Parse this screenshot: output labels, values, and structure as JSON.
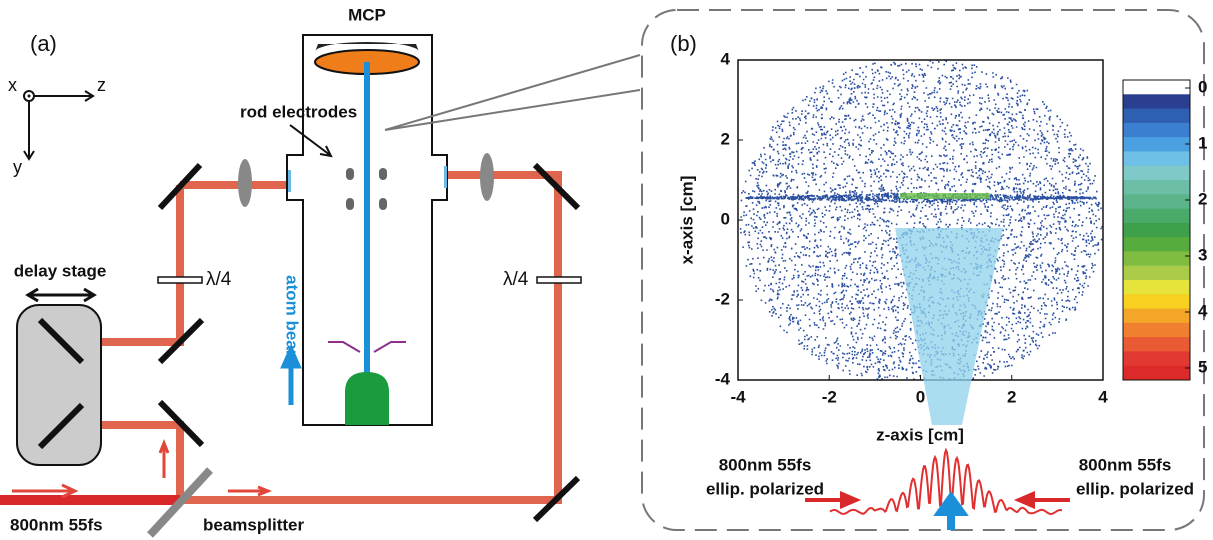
{
  "panel_a": {
    "label": "(a)",
    "axes": {
      "x": "x",
      "z": "z",
      "y": "y"
    },
    "mcp": "MCP",
    "rod_electrodes": "rod electrodes",
    "delay_stage": "delay stage",
    "waveplate_left": "λ/4",
    "waveplate_right": "λ/4",
    "atom_beam": "atom beam",
    "input_laser": "800nm 55fs",
    "beamsplitter": "beamsplitter"
  },
  "panel_b": {
    "label": "(b)",
    "x_axis_label": "z-axis [cm]",
    "y_axis_label": "x-axis [cm]",
    "xticks": [
      -4,
      -2,
      0,
      2,
      4
    ],
    "yticks": [
      4,
      2,
      0,
      -2,
      -4
    ],
    "colorbar_ticks": [
      0,
      1,
      2,
      3,
      4,
      5
    ],
    "left_beam": [
      "800nm 55fs",
      "ellip. polarized"
    ],
    "right_beam": [
      "800nm 55fs",
      "ellip. polarized"
    ]
  }
}
